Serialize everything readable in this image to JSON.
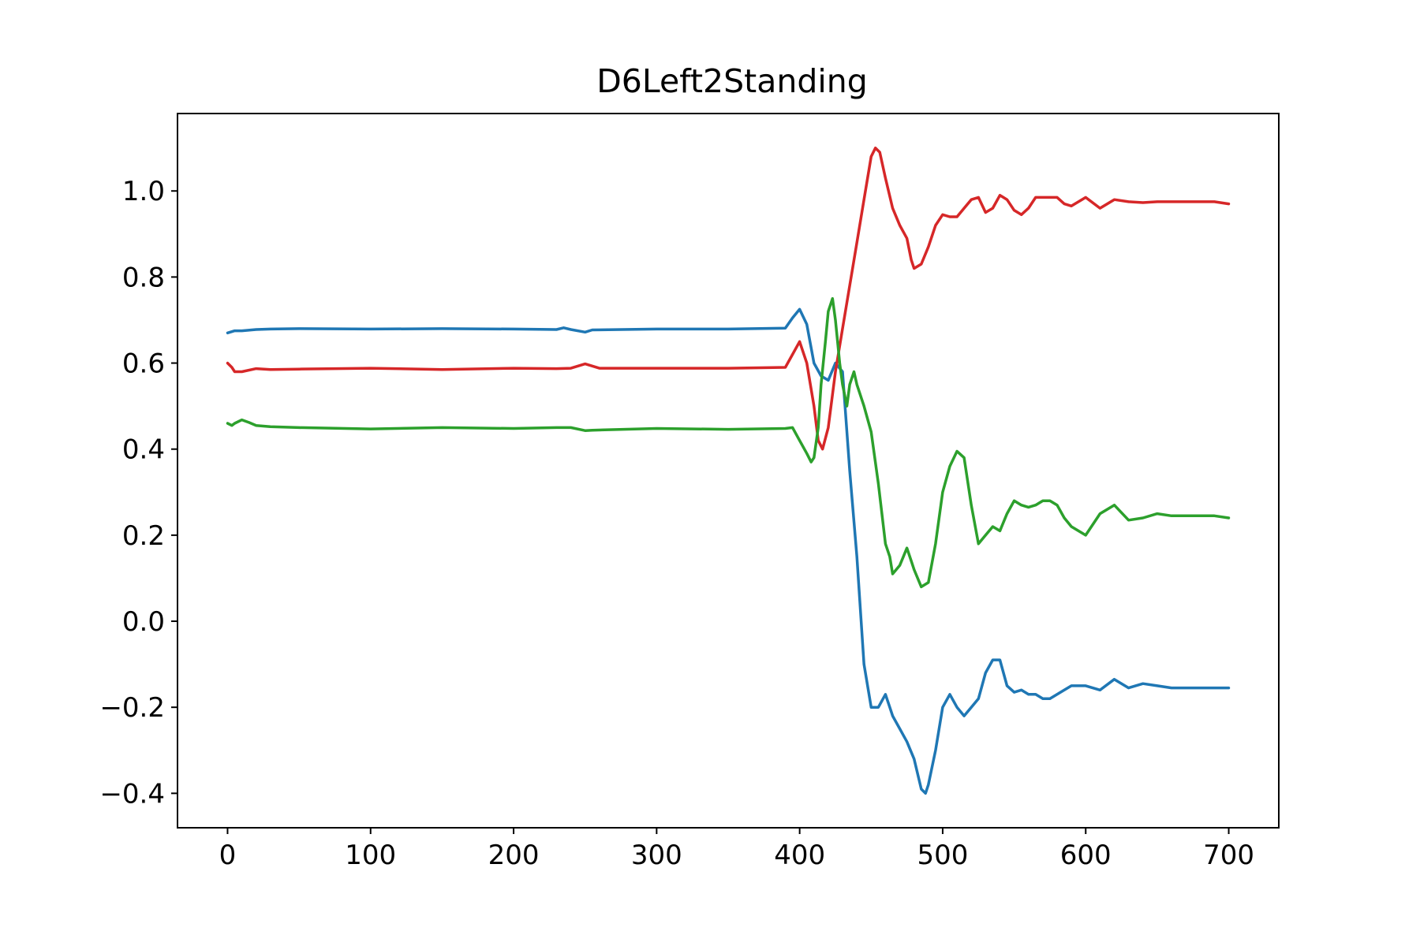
{
  "chart_data": {
    "type": "line",
    "title": "D6Left2Standing",
    "xlabel": "",
    "ylabel": "",
    "xlim": [
      -35,
      735
    ],
    "ylim": [
      -0.48,
      1.18
    ],
    "xticks": [
      0,
      100,
      200,
      300,
      400,
      500,
      600,
      700
    ],
    "xtick_labels": [
      "0",
      "100",
      "200",
      "300",
      "400",
      "500",
      "600",
      "700"
    ],
    "yticks": [
      -0.4,
      -0.2,
      0.0,
      0.2,
      0.4,
      0.6,
      0.8,
      1.0
    ],
    "ytick_labels": [
      "−0.4",
      "−0.2",
      "0.0",
      "0.2",
      "0.4",
      "0.6",
      "0.8",
      "1.0"
    ],
    "grid": false,
    "legend": "none",
    "series": [
      {
        "color": "#1f77b4",
        "x": [
          0,
          5,
          10,
          20,
          30,
          50,
          100,
          150,
          200,
          230,
          235,
          240,
          250,
          255,
          300,
          350,
          390,
          395,
          400,
          405,
          410,
          415,
          420,
          425,
          430,
          435,
          440,
          445,
          450,
          455,
          460,
          463,
          465,
          470,
          475,
          480,
          485,
          488,
          490,
          495,
          500,
          505,
          510,
          515,
          520,
          525,
          530,
          535,
          540,
          545,
          550,
          555,
          560,
          565,
          570,
          575,
          580,
          585,
          590,
          600,
          610,
          620,
          630,
          640,
          650,
          660,
          670,
          680,
          690,
          700
        ],
        "y": [
          0.67,
          0.675,
          0.675,
          0.678,
          0.679,
          0.68,
          0.679,
          0.68,
          0.679,
          0.678,
          0.682,
          0.678,
          0.672,
          0.677,
          0.679,
          0.679,
          0.681,
          0.705,
          0.725,
          0.69,
          0.6,
          0.57,
          0.56,
          0.6,
          0.58,
          0.35,
          0.15,
          -0.1,
          -0.2,
          -0.2,
          -0.17,
          -0.2,
          -0.22,
          -0.25,
          -0.28,
          -0.32,
          -0.39,
          -0.4,
          -0.38,
          -0.3,
          -0.2,
          -0.17,
          -0.2,
          -0.22,
          -0.2,
          -0.18,
          -0.12,
          -0.09,
          -0.09,
          -0.15,
          -0.165,
          -0.16,
          -0.17,
          -0.17,
          -0.18,
          -0.18,
          -0.17,
          -0.16,
          -0.15,
          -0.15,
          -0.16,
          -0.135,
          -0.155,
          -0.145,
          -0.15,
          -0.155,
          -0.155,
          -0.155,
          -0.155,
          -0.155
        ]
      },
      {
        "color": "#d62728",
        "x": [
          0,
          3,
          5,
          10,
          20,
          30,
          50,
          100,
          150,
          200,
          230,
          240,
          250,
          260,
          300,
          350,
          390,
          395,
          400,
          405,
          410,
          413,
          416,
          420,
          425,
          430,
          435,
          440,
          445,
          450,
          453,
          456,
          460,
          465,
          470,
          475,
          478,
          480,
          485,
          490,
          495,
          500,
          505,
          510,
          515,
          520,
          525,
          530,
          535,
          540,
          545,
          550,
          555,
          560,
          565,
          570,
          575,
          580,
          585,
          590,
          600,
          610,
          620,
          630,
          640,
          650,
          660,
          670,
          680,
          690,
          700
        ],
        "y": [
          0.6,
          0.59,
          0.58,
          0.58,
          0.587,
          0.585,
          0.586,
          0.588,
          0.585,
          0.588,
          0.587,
          0.588,
          0.598,
          0.588,
          0.588,
          0.588,
          0.59,
          0.62,
          0.65,
          0.6,
          0.5,
          0.42,
          0.4,
          0.45,
          0.58,
          0.68,
          0.78,
          0.88,
          0.98,
          1.08,
          1.1,
          1.09,
          1.03,
          0.96,
          0.92,
          0.89,
          0.84,
          0.82,
          0.83,
          0.87,
          0.92,
          0.945,
          0.94,
          0.94,
          0.96,
          0.98,
          0.985,
          0.95,
          0.96,
          0.99,
          0.98,
          0.955,
          0.945,
          0.96,
          0.985,
          0.985,
          0.985,
          0.985,
          0.97,
          0.965,
          0.985,
          0.96,
          0.98,
          0.975,
          0.973,
          0.975,
          0.975,
          0.975,
          0.975,
          0.975,
          0.97
        ]
      },
      {
        "color": "#2ca02c",
        "x": [
          0,
          3,
          5,
          10,
          15,
          20,
          30,
          50,
          100,
          150,
          200,
          230,
          240,
          250,
          255,
          300,
          350,
          390,
          395,
          400,
          405,
          408,
          410,
          413,
          415,
          418,
          420,
          423,
          425,
          428,
          430,
          433,
          435,
          438,
          440,
          445,
          450,
          455,
          460,
          463,
          465,
          470,
          475,
          478,
          480,
          485,
          490,
          495,
          500,
          505,
          510,
          515,
          520,
          525,
          530,
          535,
          540,
          545,
          550,
          555,
          560,
          565,
          570,
          575,
          580,
          585,
          590,
          600,
          610,
          620,
          630,
          640,
          650,
          660,
          670,
          680,
          690,
          700
        ],
        "y": [
          0.46,
          0.455,
          0.46,
          0.468,
          0.462,
          0.455,
          0.452,
          0.45,
          0.447,
          0.45,
          0.448,
          0.45,
          0.45,
          0.443,
          0.444,
          0.448,
          0.446,
          0.448,
          0.45,
          0.42,
          0.39,
          0.37,
          0.38,
          0.45,
          0.55,
          0.65,
          0.72,
          0.75,
          0.7,
          0.6,
          0.55,
          0.5,
          0.55,
          0.58,
          0.55,
          0.5,
          0.44,
          0.32,
          0.18,
          0.15,
          0.11,
          0.13,
          0.17,
          0.14,
          0.12,
          0.08,
          0.09,
          0.18,
          0.3,
          0.36,
          0.395,
          0.38,
          0.27,
          0.18,
          0.2,
          0.22,
          0.21,
          0.25,
          0.28,
          0.27,
          0.265,
          0.27,
          0.28,
          0.28,
          0.27,
          0.24,
          0.22,
          0.2,
          0.25,
          0.27,
          0.235,
          0.24,
          0.25,
          0.245,
          0.245,
          0.245,
          0.245,
          0.24
        ]
      }
    ]
  }
}
